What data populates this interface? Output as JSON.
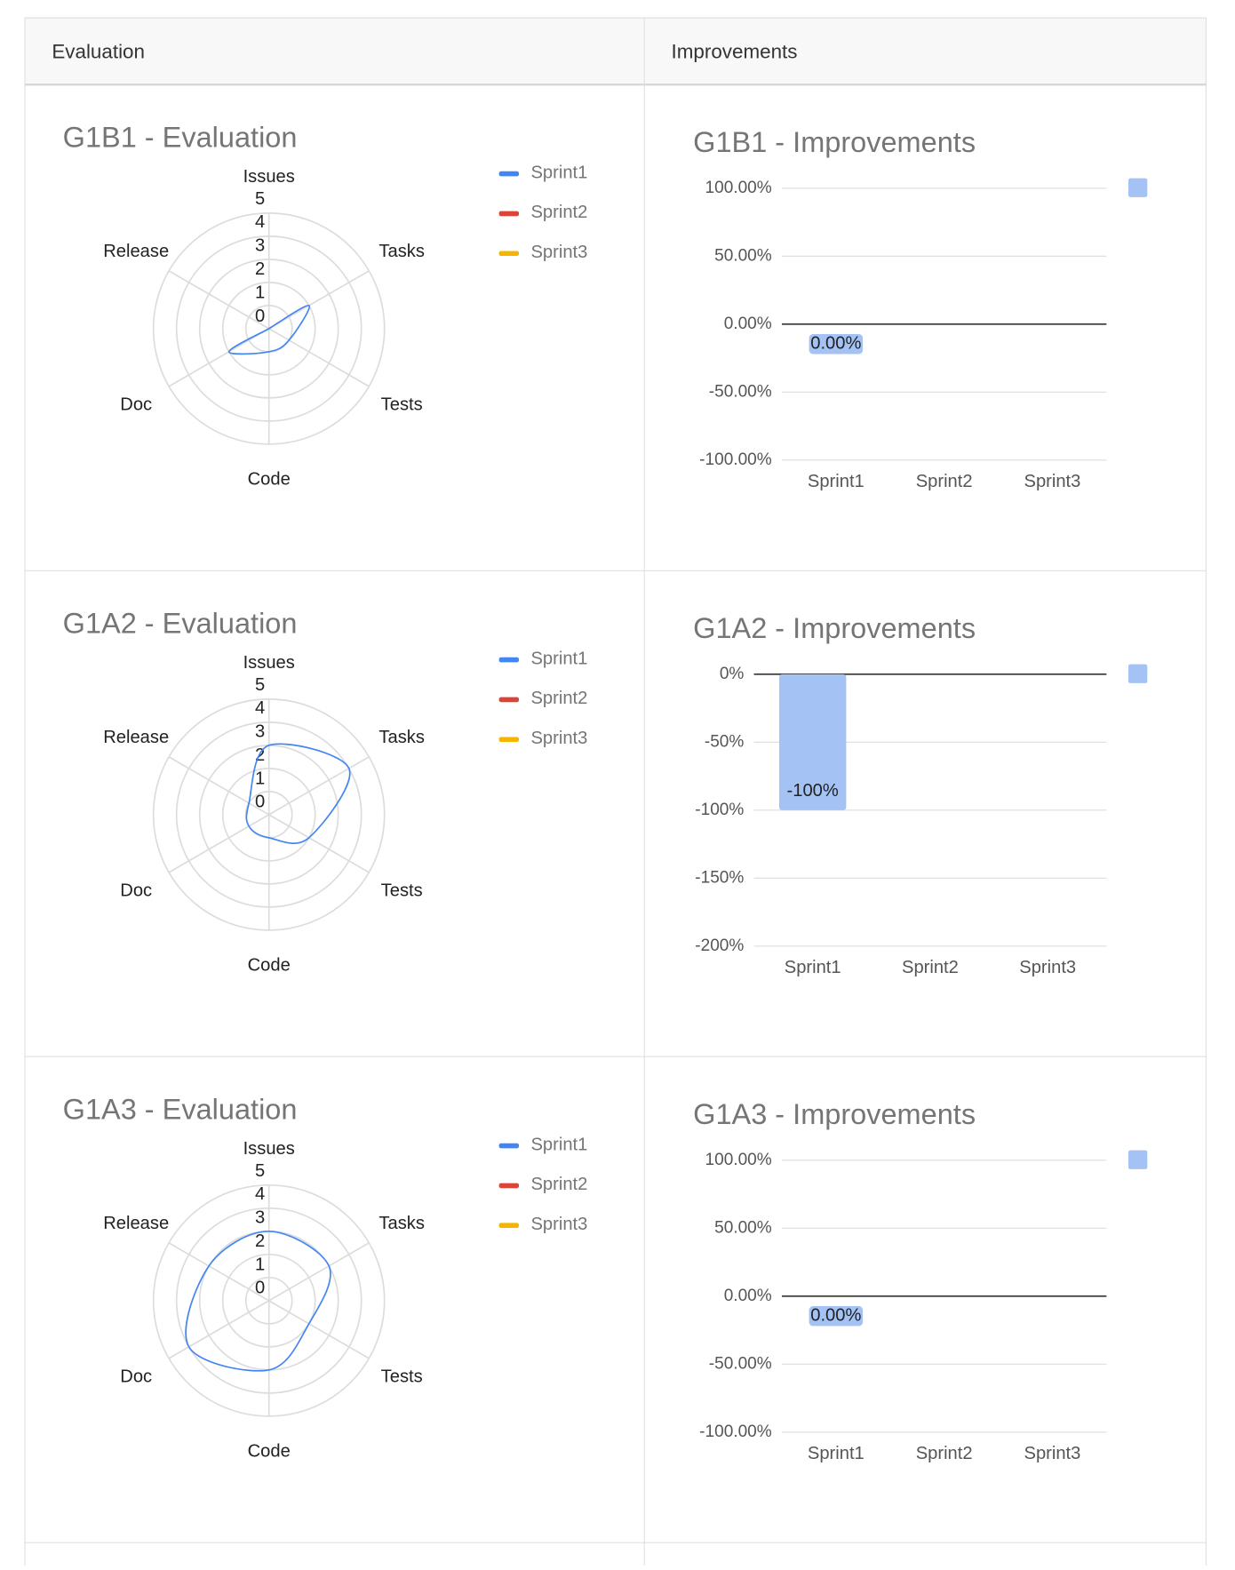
{
  "table": {
    "headers": [
      "Evaluation",
      "Improvements"
    ]
  },
  "chart_data": [
    {
      "type": "radar",
      "title": "G1B1 - Evaluation",
      "categories": [
        "Issues",
        "Tasks",
        "Tests",
        "Code",
        "Doc",
        "Release"
      ],
      "rlim": [
        0,
        5
      ],
      "rticks": [
        0,
        1,
        2,
        3,
        4,
        5
      ],
      "series": [
        {
          "name": "Sprint1",
          "color": "#4285f4",
          "values": [
            0,
            2,
            1,
            1,
            2,
            0
          ]
        },
        {
          "name": "Sprint2",
          "color": "#db4437",
          "values": [
            null,
            null,
            null,
            null,
            null,
            null
          ]
        },
        {
          "name": "Sprint3",
          "color": "#f4b400",
          "values": [
            null,
            null,
            null,
            null,
            null,
            null
          ]
        }
      ]
    },
    {
      "type": "bar",
      "title": "G1B1 - Improvements",
      "categories": [
        "Sprint1",
        "Sprint2",
        "Sprint3"
      ],
      "values": [
        0,
        null,
        null
      ],
      "value_labels": [
        "0.00%",
        null,
        null
      ],
      "color": "#a4c2f4",
      "ylim": [
        -100,
        100
      ],
      "yticks": [
        {
          "value": -100,
          "label": "-100.00%"
        },
        {
          "value": -50,
          "label": "-50.00%"
        },
        {
          "value": 0,
          "label": "0.00%"
        },
        {
          "value": 50,
          "label": "50.00%"
        },
        {
          "value": 100,
          "label": "100.00%"
        }
      ]
    },
    {
      "type": "radar",
      "title": "G1A2 - Evaluation",
      "categories": [
        "Issues",
        "Tasks",
        "Tests",
        "Code",
        "Doc",
        "Release"
      ],
      "rlim": [
        0,
        5
      ],
      "rticks": [
        0,
        1,
        2,
        3,
        4,
        5
      ],
      "series": [
        {
          "name": "Sprint1",
          "color": "#4285f4",
          "values": [
            3,
            4,
            2,
            1,
            1,
            1
          ]
        },
        {
          "name": "Sprint2",
          "color": "#db4437",
          "values": [
            null,
            null,
            null,
            null,
            null,
            null
          ]
        },
        {
          "name": "Sprint3",
          "color": "#f4b400",
          "values": [
            null,
            null,
            null,
            null,
            null,
            null
          ]
        }
      ]
    },
    {
      "type": "bar",
      "title": "G1A2 - Improvements",
      "categories": [
        "Sprint1",
        "Sprint2",
        "Sprint3"
      ],
      "values": [
        -100,
        null,
        null
      ],
      "value_labels": [
        "-100%",
        null,
        null
      ],
      "color": "#a4c2f4",
      "ylim": [
        -200,
        0
      ],
      "yticks": [
        {
          "value": -200,
          "label": "-200%"
        },
        {
          "value": -150,
          "label": "-150%"
        },
        {
          "value": -100,
          "label": "-100%"
        },
        {
          "value": -50,
          "label": "-50%"
        },
        {
          "value": 0,
          "label": "0%"
        }
      ]
    },
    {
      "type": "radar",
      "title": "G1A3 - Evaluation",
      "categories": [
        "Issues",
        "Tasks",
        "Tests",
        "Code",
        "Doc",
        "Release"
      ],
      "rlim": [
        0,
        5
      ],
      "rticks": [
        0,
        1,
        2,
        3,
        4,
        5
      ],
      "series": [
        {
          "name": "Sprint1",
          "color": "#4285f4",
          "values": [
            3,
            3,
            2,
            3,
            4,
            3
          ]
        },
        {
          "name": "Sprint2",
          "color": "#db4437",
          "values": [
            null,
            null,
            null,
            null,
            null,
            null
          ]
        },
        {
          "name": "Sprint3",
          "color": "#f4b400",
          "values": [
            null,
            null,
            null,
            null,
            null,
            null
          ]
        }
      ]
    },
    {
      "type": "bar",
      "title": "G1A3 - Improvements",
      "categories": [
        "Sprint1",
        "Sprint2",
        "Sprint3"
      ],
      "values": [
        0,
        null,
        null
      ],
      "value_labels": [
        "0.00%",
        null,
        null
      ],
      "color": "#a4c2f4",
      "ylim": [
        -100,
        100
      ],
      "yticks": [
        {
          "value": -100,
          "label": "-100.00%"
        },
        {
          "value": -50,
          "label": "-50.00%"
        },
        {
          "value": 0,
          "label": "0.00%"
        },
        {
          "value": 50,
          "label": "50.00%"
        },
        {
          "value": 100,
          "label": "100.00%"
        }
      ]
    }
  ]
}
